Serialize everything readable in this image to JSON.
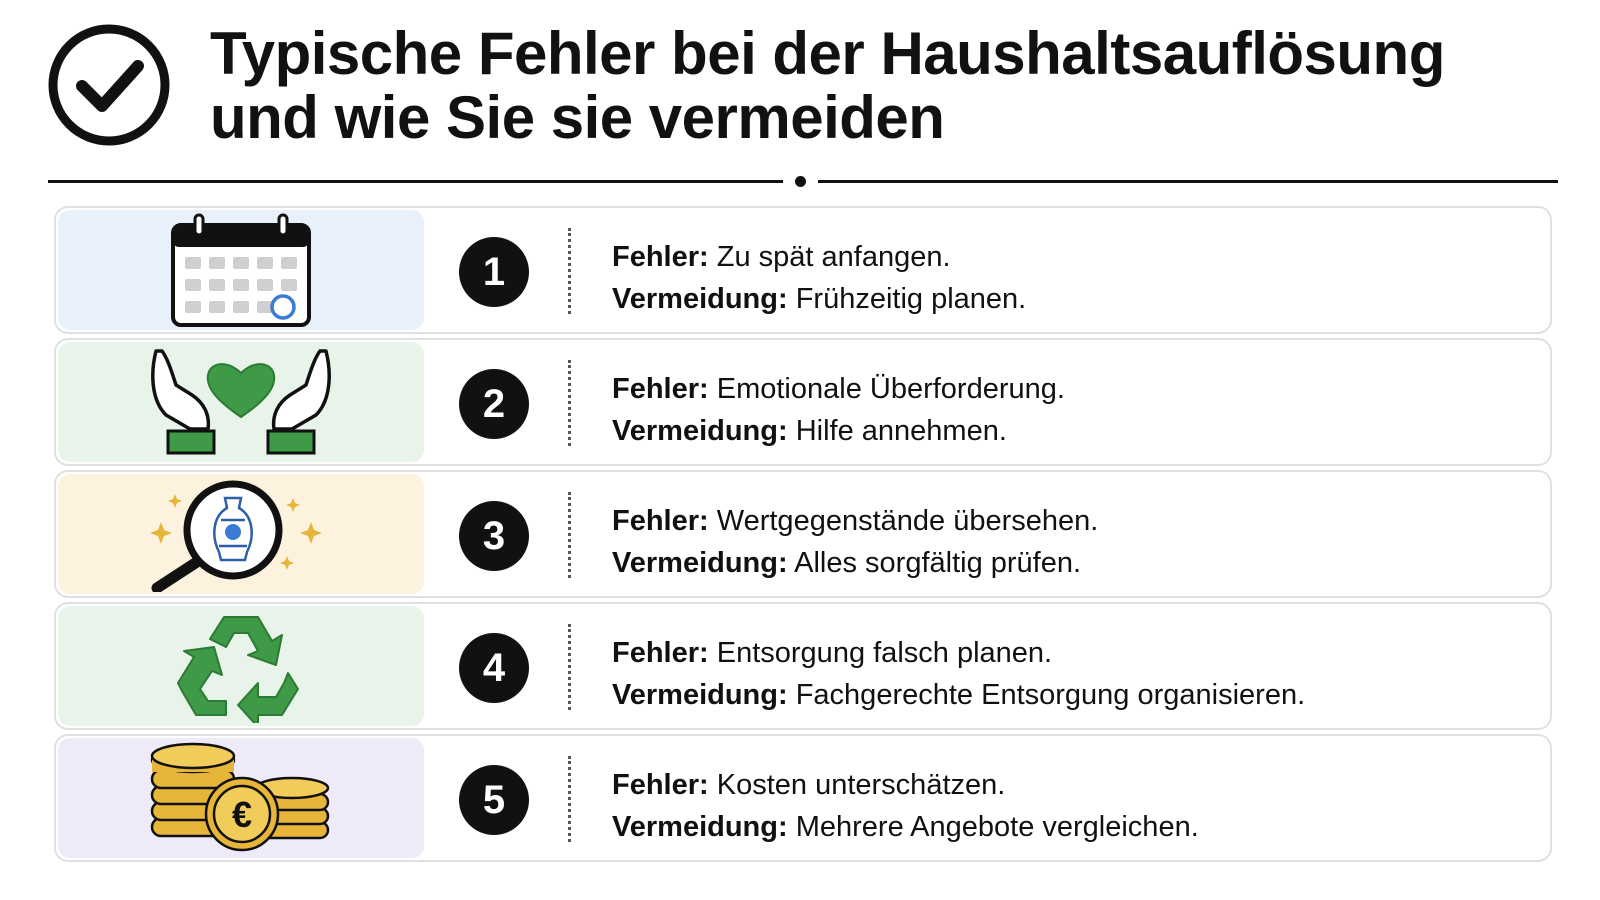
{
  "header": {
    "icon": "check-circle-icon",
    "title_line1": "Typische Fehler bei der Haushaltsauflösung",
    "title_line2": "und wie Sie sie vermeiden"
  },
  "colors": {
    "ink": "#111111",
    "panel_blue": "#e8f1fb",
    "panel_green": "#e8f4e9",
    "panel_yellow": "#fdf2de",
    "panel_purple": "#efeaf7",
    "accent_green": "#3e9a47",
    "accent_gold": "#e6b53a",
    "accent_blue": "#3a7bd5"
  },
  "items": [
    {
      "number": "1",
      "icon": "calendar-icon",
      "fehler_label": "Fehler:",
      "fehler_text": " Zu spät anfangen.",
      "vermeidung_label": "Vermeidung:",
      "vermeidung_text": " Frühzeitig planen."
    },
    {
      "number": "2",
      "icon": "hands-heart-icon",
      "fehler_label": "Fehler:",
      "fehler_text": " Emotionale Überforderung.",
      "vermeidung_label": "Vermeidung:",
      "vermeidung_text": " Hilfe annehmen."
    },
    {
      "number": "3",
      "icon": "magnifier-vase-icon",
      "fehler_label": "Fehler:",
      "fehler_text": " Wertgegenstände übersehen.",
      "vermeidung_label": "Vermeidung:",
      "vermeidung_text": " Alles sorgfältig prüfen."
    },
    {
      "number": "4",
      "icon": "recycle-icon",
      "fehler_label": "Fehler:",
      "fehler_text": " Entsorgung falsch planen.",
      "vermeidung_label": "Vermeidung:",
      "vermeidung_text": " Fachgerechte Entsorgung organisieren."
    },
    {
      "number": "5",
      "icon": "coins-euro-icon",
      "fehler_label": "Fehler:",
      "fehler_text": " Kosten unterschätzen.",
      "vermeidung_label": "Vermeidung:",
      "vermeidung_text": " Mehrere Angebote vergleichen."
    }
  ]
}
